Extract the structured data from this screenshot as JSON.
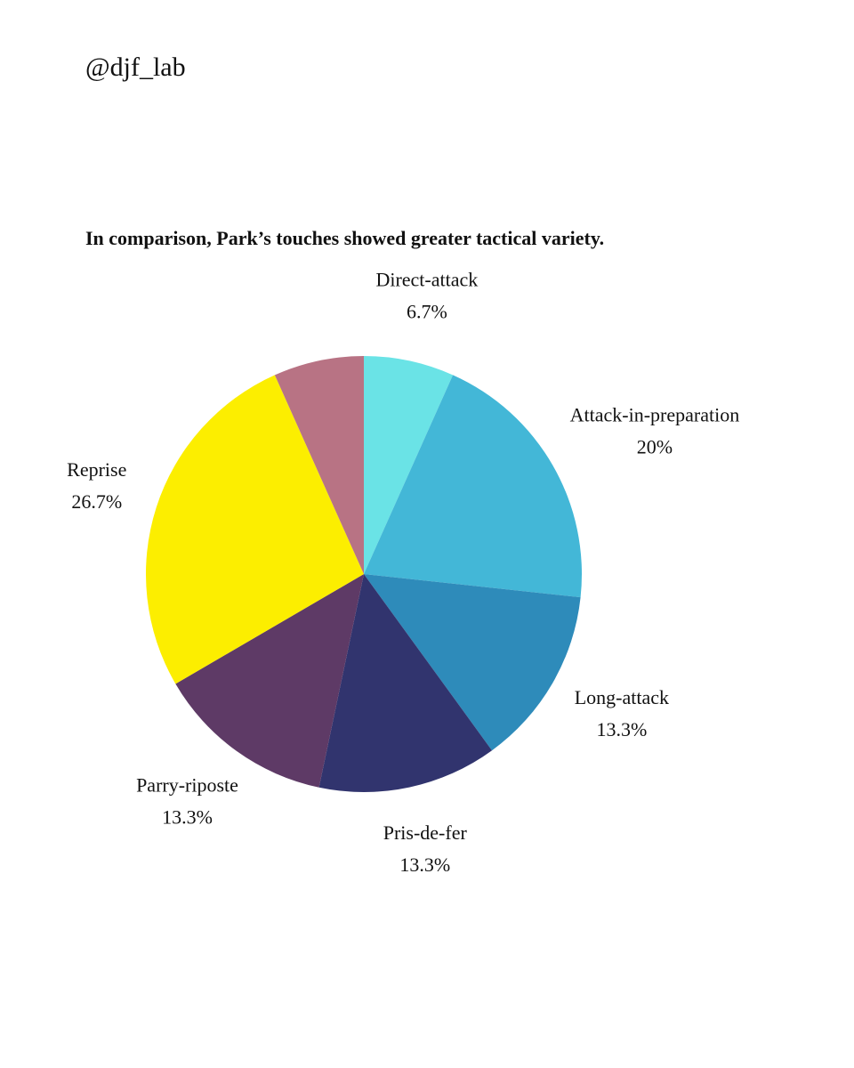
{
  "header": {
    "handle": "@djf_lab"
  },
  "chart_data": {
    "type": "pie",
    "title": "In comparison, Park’s touches showed greater tactical variety.",
    "categories": [
      "Direct-attack",
      "Attack-in-preparation",
      "Long-attack",
      "Pris-de-fer",
      "Parry-riposte",
      "Reprise",
      null
    ],
    "values": [
      6.7,
      20,
      13.3,
      13.3,
      13.3,
      26.7,
      6.7
    ],
    "value_labels": [
      "6.7%",
      "20%",
      "13.3%",
      "13.3%",
      "13.3%",
      "26.7%",
      null
    ],
    "colors": [
      "#6ae3e6",
      "#43b7d7",
      "#2e8bba",
      "#31346e",
      "#5e3a66",
      "#fcee00",
      "#b87384"
    ]
  }
}
